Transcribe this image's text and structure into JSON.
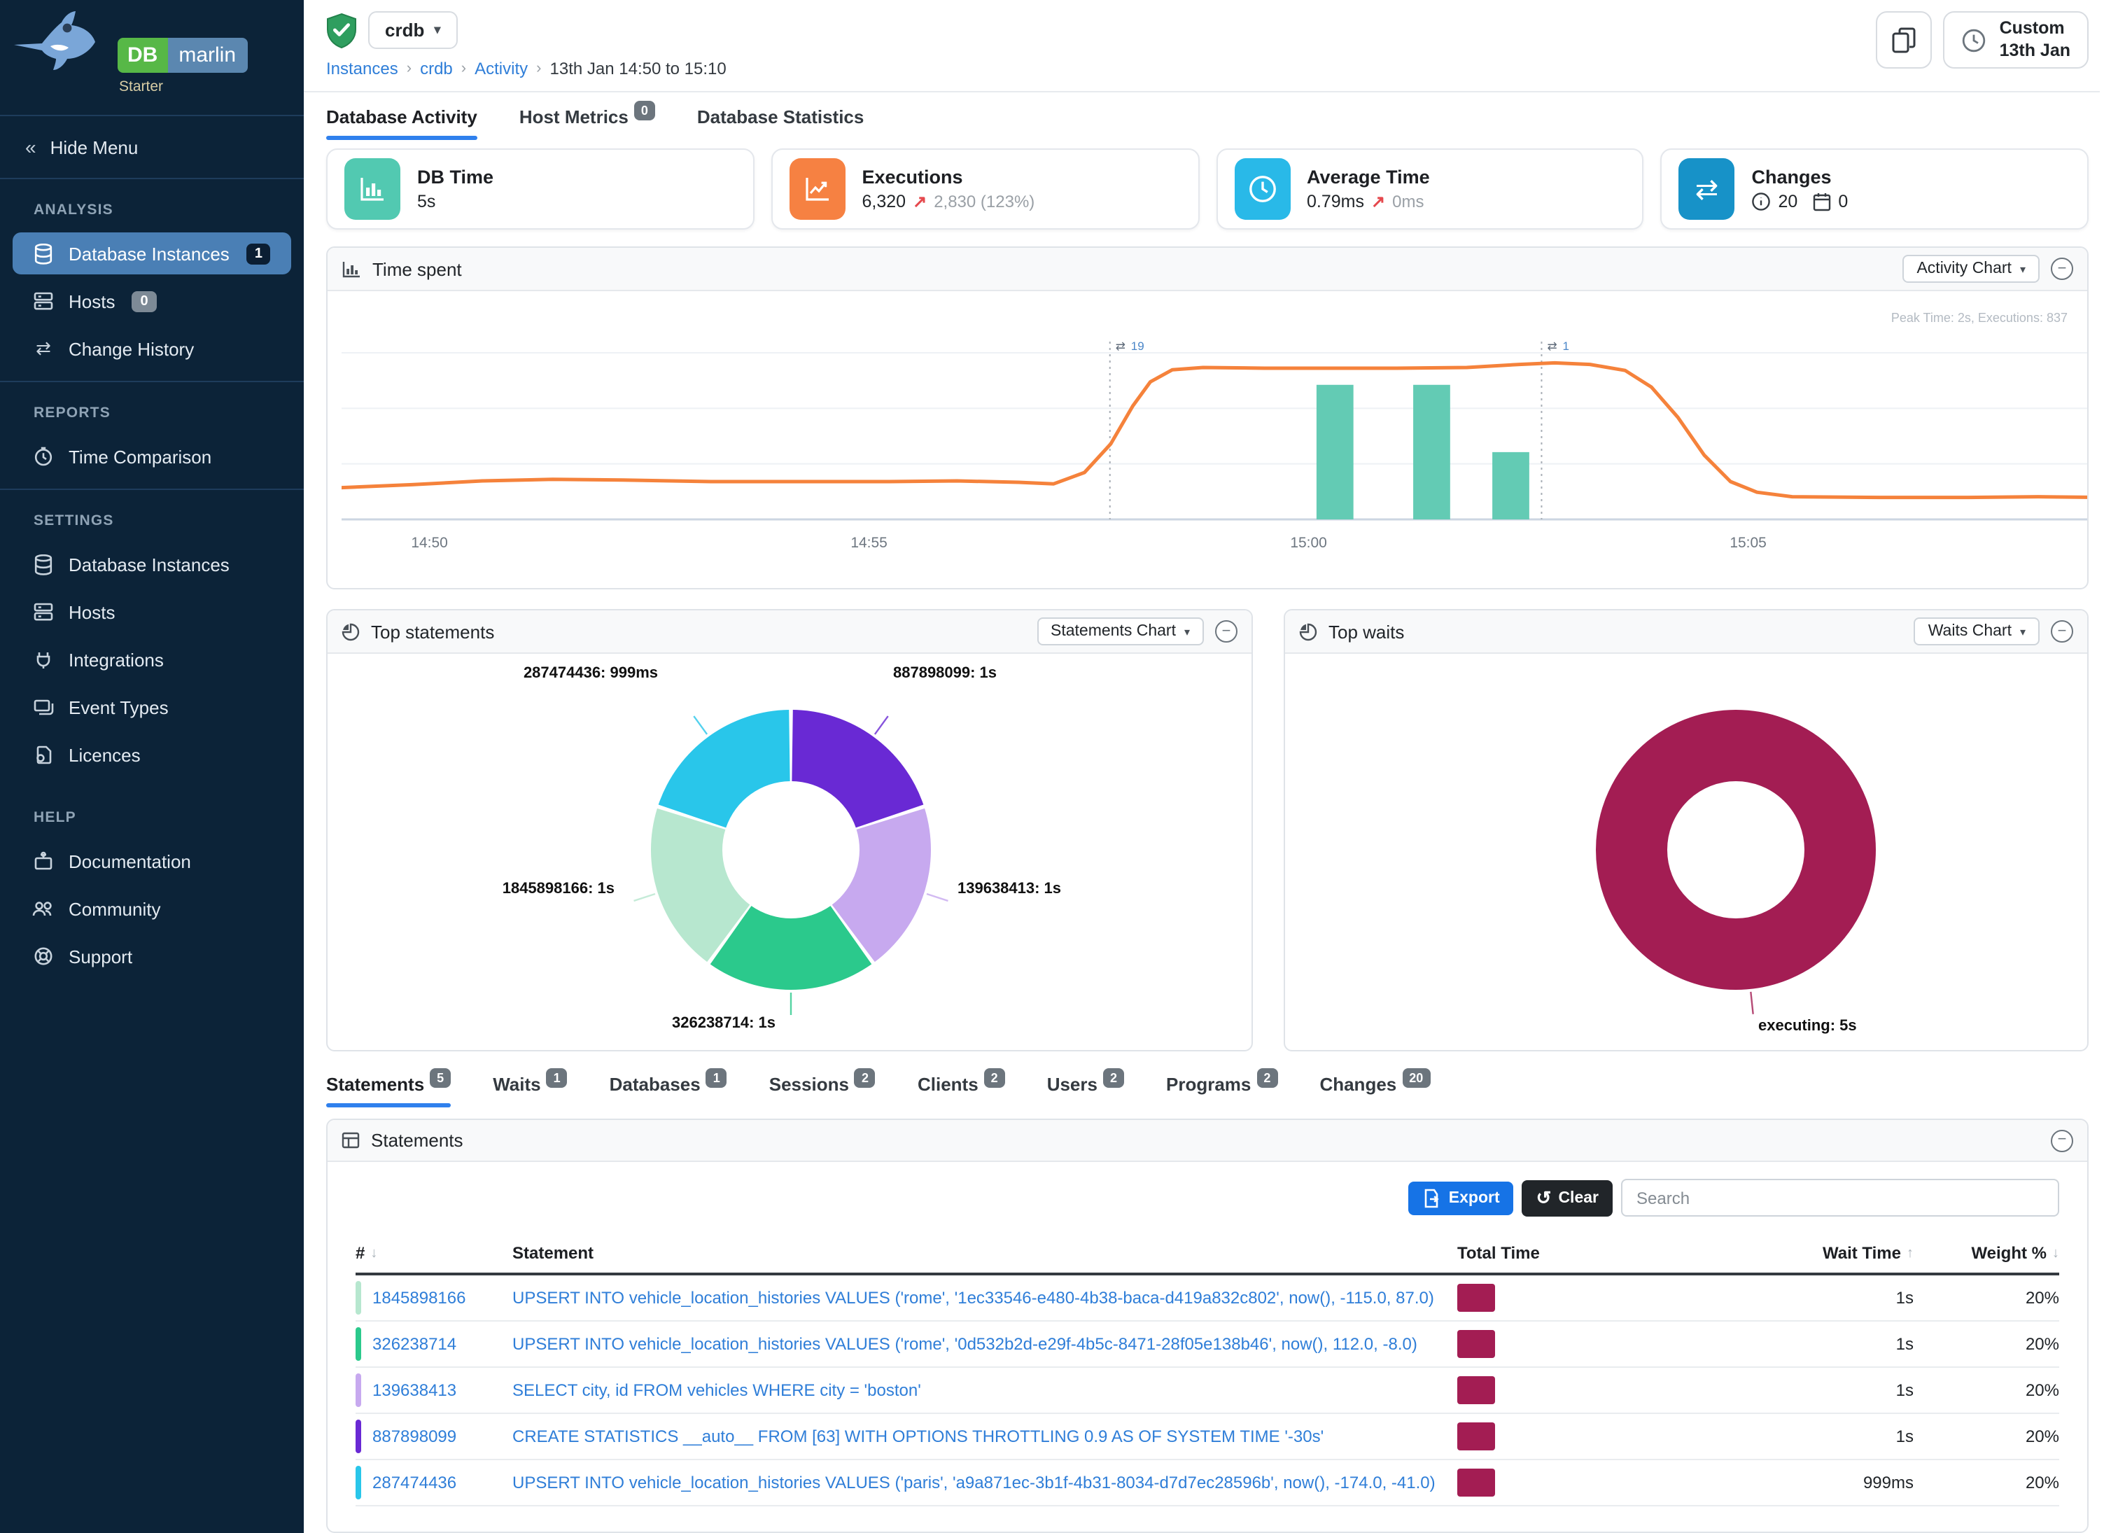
{
  "brand": {
    "db": "DB",
    "marlin": "marlin",
    "edition": "Starter"
  },
  "sidebar": {
    "hide_menu": "Hide Menu",
    "sections": [
      {
        "title": "ANALYSIS",
        "items": [
          {
            "label": "Database Instances",
            "badge": "1",
            "active": true
          },
          {
            "label": "Hosts",
            "badge": "0"
          },
          {
            "label": "Change History"
          }
        ]
      },
      {
        "title": "REPORTS",
        "items": [
          {
            "label": "Time Comparison"
          }
        ]
      },
      {
        "title": "SETTINGS",
        "items": [
          {
            "label": "Database Instances"
          },
          {
            "label": "Hosts"
          },
          {
            "label": "Integrations"
          },
          {
            "label": "Event Types"
          },
          {
            "label": "Licences"
          }
        ]
      },
      {
        "title": "HELP",
        "items": [
          {
            "label": "Documentation"
          },
          {
            "label": "Community"
          },
          {
            "label": "Support"
          }
        ]
      }
    ]
  },
  "header": {
    "instance": "crdb",
    "breadcrumb": {
      "i0": "Instances",
      "i1": "crdb",
      "i2": "Activity",
      "i3": "13th Jan 14:50 to 15:10"
    },
    "time_button": {
      "line1": "Custom",
      "line2": "13th Jan"
    }
  },
  "tabs": {
    "t0": {
      "label": "Database Activity"
    },
    "t1": {
      "label": "Host Metrics",
      "badge": "0"
    },
    "t2": {
      "label": "Database Statistics"
    }
  },
  "cards": {
    "db_time": {
      "title": "DB Time",
      "value": "5s",
      "color": "#52c9b1"
    },
    "executions": {
      "title": "Executions",
      "value": "6,320",
      "delta_arrow": "↗",
      "delta": "2,830 (123%)",
      "color": "#f68142"
    },
    "avg_time": {
      "title": "Average Time",
      "value": "0.79ms",
      "delta_arrow": "↗",
      "delta": "0ms",
      "color": "#29b9e8"
    },
    "changes": {
      "title": "Changes",
      "info_count": "20",
      "calendar_count": "0",
      "color": "#1792c8"
    }
  },
  "time_spent": {
    "title": "Time spent",
    "selector": "Activity Chart",
    "collapse": "−"
  },
  "top_statements": {
    "title": "Top statements",
    "selector": "Statements Chart"
  },
  "top_waits": {
    "title": "Top waits",
    "selector": "Waits Chart"
  },
  "detail_tabs": {
    "d0": {
      "label": "Statements",
      "badge": "5"
    },
    "d1": {
      "label": "Waits",
      "badge": "1"
    },
    "d2": {
      "label": "Databases",
      "badge": "1"
    },
    "d3": {
      "label": "Sessions",
      "badge": "2"
    },
    "d4": {
      "label": "Clients",
      "badge": "2"
    },
    "d5": {
      "label": "Users",
      "badge": "2"
    },
    "d6": {
      "label": "Programs",
      "badge": "2"
    },
    "d7": {
      "label": "Changes",
      "badge": "20"
    }
  },
  "statements_panel": {
    "title": "Statements",
    "export_label": "Export",
    "clear_label": "Clear",
    "search_placeholder": "Search",
    "columns": {
      "c0": "#",
      "c1": "Statement",
      "c2": "Total Time",
      "c3": "Wait Time",
      "c4": "Weight %"
    },
    "rows": [
      {
        "id": "1845898166",
        "color": "#b7e7cf",
        "sql": "UPSERT INTO vehicle_location_histories VALUES ('rome', '1ec33546-e480-4b38-baca-d419a832c802', now(), -115.0, 87.0)",
        "wait": "1s",
        "weight": "20%"
      },
      {
        "id": "326238714",
        "color": "#2bc98c",
        "sql": "UPSERT INTO vehicle_location_histories VALUES ('rome', '0d532b2d-e29f-4b5c-8471-28f05e138b46', now(), 112.0, -8.0)",
        "wait": "1s",
        "weight": "20%"
      },
      {
        "id": "139638413",
        "color": "#c7a9ef",
        "sql": "SELECT city, id FROM vehicles WHERE city = 'boston'",
        "wait": "1s",
        "weight": "20%"
      },
      {
        "id": "887898099",
        "color": "#6929d4",
        "sql": "CREATE STATISTICS __auto__ FROM [63] WITH OPTIONS THROTTLING 0.9 AS OF SYSTEM TIME '-30s'",
        "wait": "1s",
        "weight": "20%"
      },
      {
        "id": "287474436",
        "color": "#29c6ea",
        "sql": "UPSERT INTO vehicle_location_histories VALUES ('paris', 'a9a871ec-3b1f-4b31-8034-d7d7ec28596b', now(), -174.0, -41.0)",
        "wait": "999ms",
        "weight": "20%"
      }
    ]
  },
  "chart_data": [
    {
      "id": "time_spent",
      "type": "line",
      "title": "Time spent",
      "peak_annotation": "Peak Time: 2s, Executions: 837",
      "x_ticks": [
        "14:50",
        "14:55",
        "15:00",
        "15:05"
      ],
      "x_tick_t": [
        1,
        6,
        11,
        16
      ],
      "t_range": [
        0,
        20
      ],
      "y_range": [
        0,
        2.6
      ],
      "line_series": {
        "name": "DB Time (s)",
        "color": "#f5823b",
        "points": [
          [
            0,
            0.42
          ],
          [
            0.8,
            0.46
          ],
          [
            1.6,
            0.51
          ],
          [
            2.4,
            0.53
          ],
          [
            3.2,
            0.52
          ],
          [
            4.2,
            0.5
          ],
          [
            5.2,
            0.5
          ],
          [
            6.2,
            0.5
          ],
          [
            7.0,
            0.51
          ],
          [
            7.7,
            0.49
          ],
          [
            8.1,
            0.47
          ],
          [
            8.45,
            0.62
          ],
          [
            8.75,
            1.0
          ],
          [
            9.0,
            1.5
          ],
          [
            9.2,
            1.82
          ],
          [
            9.45,
            1.98
          ],
          [
            9.8,
            2.01
          ],
          [
            10.5,
            2.0
          ],
          [
            11.2,
            2.0
          ],
          [
            12.0,
            2.0
          ],
          [
            12.8,
            2.01
          ],
          [
            13.4,
            2.05
          ],
          [
            13.8,
            2.07
          ],
          [
            14.2,
            2.05
          ],
          [
            14.6,
            1.97
          ],
          [
            14.9,
            1.75
          ],
          [
            15.2,
            1.35
          ],
          [
            15.5,
            0.85
          ],
          [
            15.8,
            0.5
          ],
          [
            16.1,
            0.36
          ],
          [
            16.5,
            0.3
          ],
          [
            17.5,
            0.29
          ],
          [
            18.5,
            0.29
          ],
          [
            19.3,
            0.3
          ],
          [
            20,
            0.29
          ]
        ]
      },
      "bar_series": {
        "name": "Executions",
        "color": "#63cbb4",
        "bar_width_t": 0.42,
        "bars": [
          {
            "t": 11.3,
            "v": 1.78
          },
          {
            "t": 12.4,
            "v": 1.78
          },
          {
            "t": 13.3,
            "v": 0.89
          }
        ]
      },
      "change_markers": [
        {
          "t": 8.74,
          "label": "19"
        },
        {
          "t": 13.65,
          "label": "1"
        }
      ]
    },
    {
      "id": "top_statements",
      "type": "pie",
      "title": "Top statements",
      "slices": [
        {
          "label": "887898099",
          "value": "1s",
          "display": "887898099: 1s",
          "percent": 20,
          "color": "#6929d4"
        },
        {
          "label": "139638413",
          "value": "1s",
          "display": "139638413: 1s",
          "percent": 20,
          "color": "#c7a9ef"
        },
        {
          "label": "326238714",
          "value": "1s",
          "display": "326238714: 1s",
          "percent": 20,
          "color": "#2bc98c"
        },
        {
          "label": "1845898166",
          "value": "1s",
          "display": "1845898166: 1s",
          "percent": 20,
          "color": "#b7e7cf"
        },
        {
          "label": "287474436",
          "value": "999ms",
          "display": "287474436: 999ms",
          "percent": 20,
          "color": "#29c6ea"
        }
      ]
    },
    {
      "id": "top_waits",
      "type": "pie",
      "title": "Top waits",
      "slices": [
        {
          "label": "executing",
          "value": "5s",
          "display": "executing: 5s",
          "percent": 100,
          "color": "#a31d53"
        }
      ]
    }
  ]
}
